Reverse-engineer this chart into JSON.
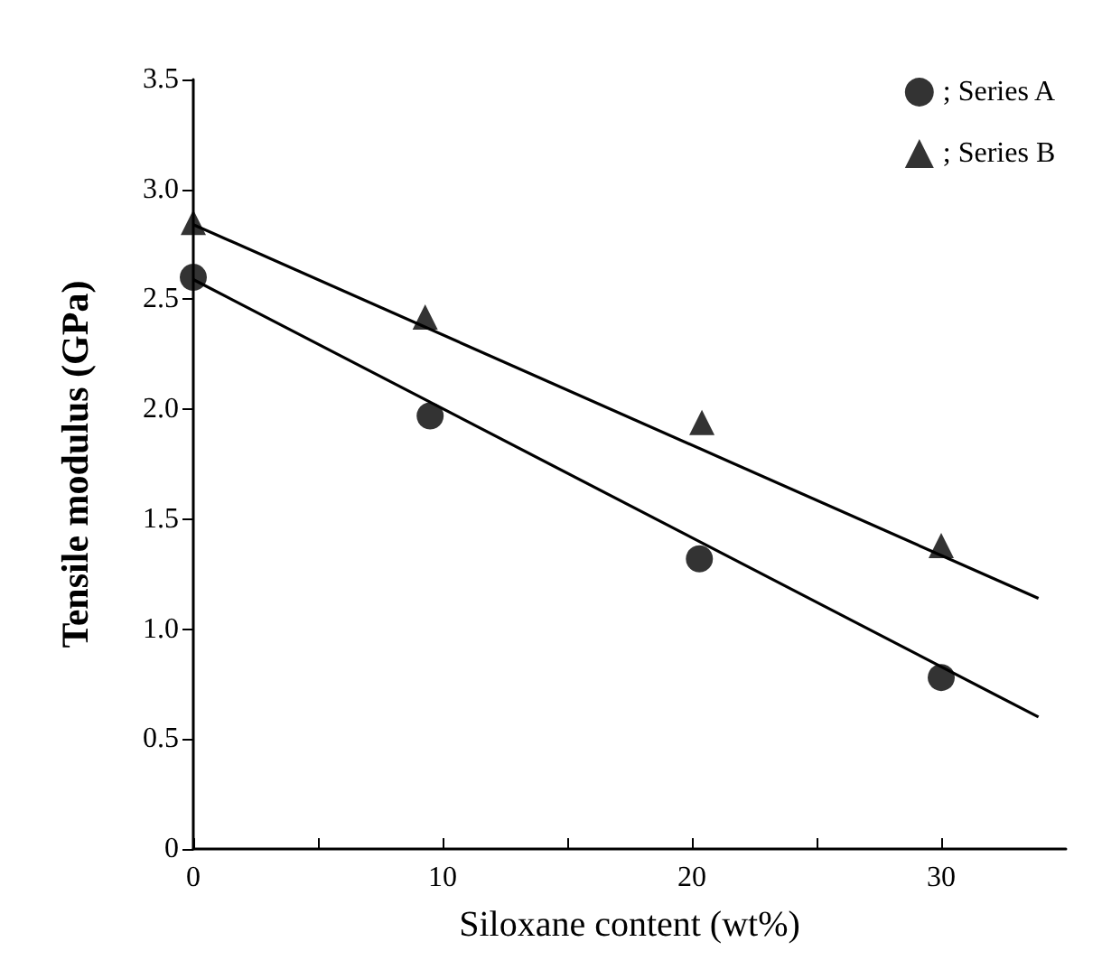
{
  "chart_data": {
    "type": "scatter",
    "xlabel": "Siloxane content (wt%)",
    "ylabel": "Tensile modulus (GPa)",
    "xlim": [
      0,
      35
    ],
    "xticks": [
      0,
      {
        "value": 5,
        "label": null
      },
      10,
      {
        "value": 15,
        "label": null
      },
      20,
      {
        "value": 25,
        "label": null
      },
      30
    ],
    "ylim": [
      0,
      3.5
    ],
    "yticks": [
      0,
      0.5,
      {
        "value": 1,
        "label": "1.0"
      },
      1.5,
      {
        "value": 2,
        "label": "2.0"
      },
      2.5,
      {
        "value": 3,
        "label": "3.0"
      },
      3.5
    ],
    "grid": false,
    "legend": "top right",
    "series": [
      {
        "name": "; Series A",
        "color": "#000000",
        "marker": "circle",
        "x": [
          0,
          9.5,
          20.3,
          30
        ],
        "values": [
          2.6,
          1.97,
          1.32,
          0.78
        ]
      },
      {
        "name": "; Series B",
        "color": "#000000",
        "marker": "triangle",
        "x": [
          0,
          9.3,
          20.4,
          30
        ],
        "values": [
          2.85,
          2.42,
          1.94,
          1.38
        ]
      },
      {
        "type": "line",
        "color": "#000000",
        "marker": "none",
        "line_style": "solid",
        "x": [
          0,
          33.9
        ],
        "values": [
          2.59,
          0.6
        ]
      },
      {
        "type": "line",
        "color": "#000000",
        "marker": "none",
        "line_style": "solid",
        "x": [
          0,
          33.9
        ],
        "values": [
          2.84,
          1.14
        ]
      }
    ]
  }
}
